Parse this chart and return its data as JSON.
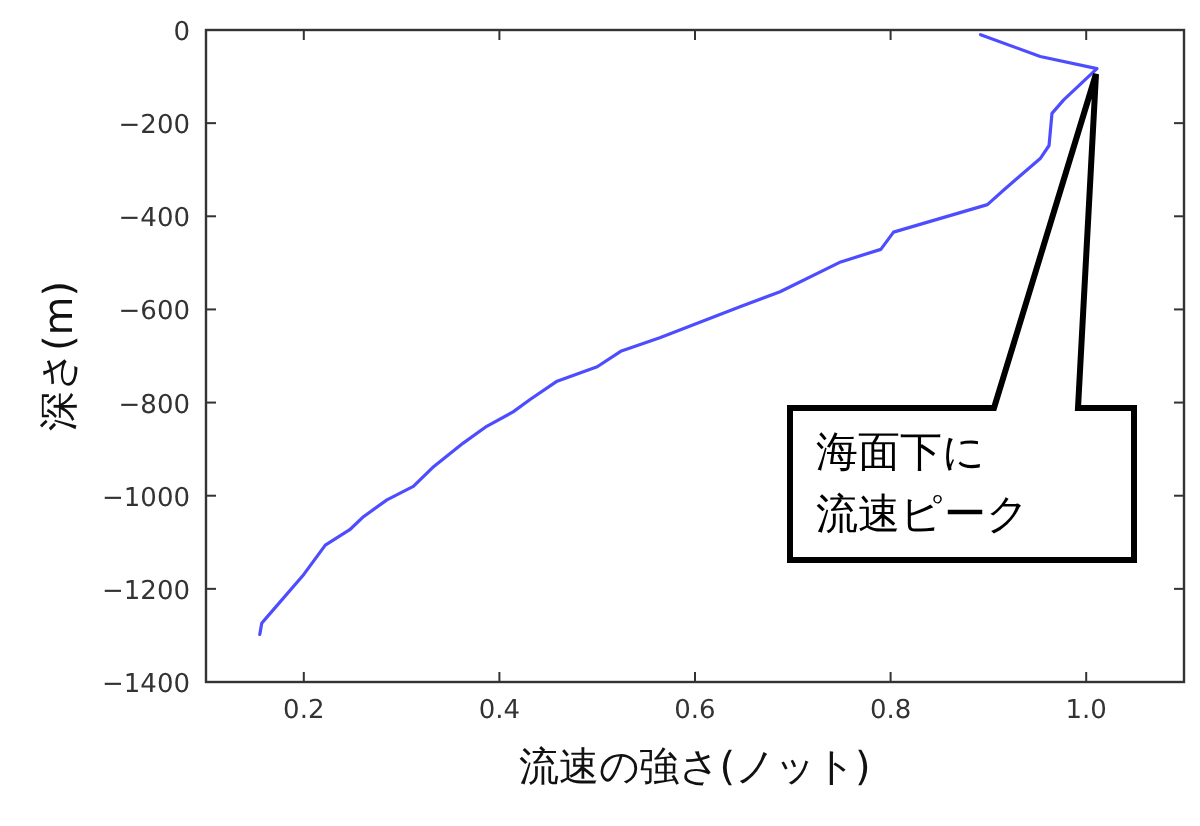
{
  "chart_data": {
    "type": "line",
    "xlabel": "流速の強さ(ノット)",
    "ylabel": "深さ(m)",
    "xlim": [
      0.1,
      1.1
    ],
    "xticks": [
      0.2,
      0.4,
      0.6,
      0.8,
      {
        "value": 1.0,
        "label": "1.0"
      }
    ],
    "ylim": [
      -1400,
      0
    ],
    "yticks": [
      0,
      -200,
      -400,
      -600,
      -800,
      -1000,
      -1200,
      -1400
    ],
    "grid": false,
    "marker": "none",
    "line_style": "solid",
    "series": [
      {
        "color": "#4d4dff",
        "x": [
          0.892,
          0.953,
          1.011,
          0.977,
          0.965,
          0.962,
          0.953,
          0.916,
          0.899,
          0.803,
          0.79,
          0.749,
          0.687,
          0.646,
          0.564,
          0.524,
          0.5,
          0.459,
          0.431,
          0.414,
          0.387,
          0.363,
          0.333,
          0.312,
          0.285,
          0.261,
          0.247,
          0.222,
          0.2,
          0.161,
          0.157,
          0.155
        ],
        "values": [
          -10,
          -57,
          -83,
          -150,
          -179,
          -248,
          -276,
          -343,
          -375,
          -434,
          -471,
          -498,
          -562,
          -594,
          -661,
          -690,
          -723,
          -754,
          -794,
          -820,
          -851,
          -887,
          -937,
          -980,
          -1009,
          -1045,
          -1073,
          -1106,
          -1169,
          -1264,
          -1274,
          -1298
        ]
      }
    ],
    "annotations": [
      "海面下に",
      "流速ピーク"
    ]
  }
}
